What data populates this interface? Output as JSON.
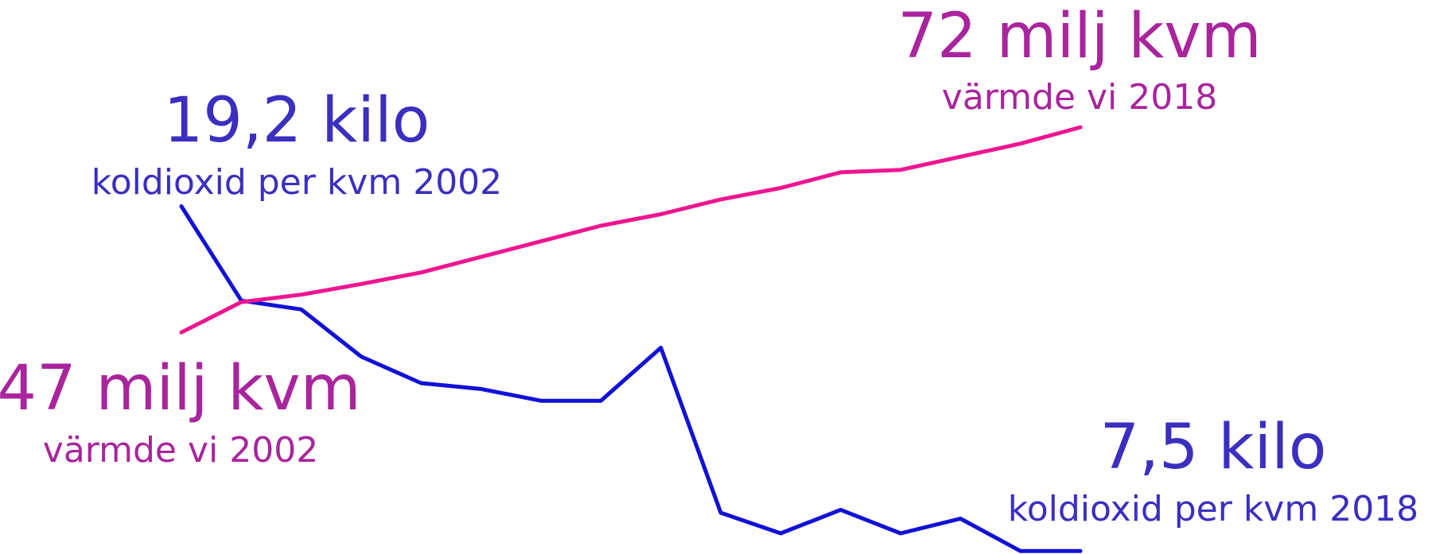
{
  "chart_data": {
    "type": "line",
    "annotations": [
      "19,2 kilo",
      "koldioxid per kvm 2002",
      "72 milj kvm",
      "värmde vi 2018",
      "47 milj kvm",
      "värmde vi 2002",
      "7,5 kilo",
      "koldioxid per kvm 2018"
    ],
    "series": [
      {
        "name": "koldioxid per kvm",
        "color": "#1111d6",
        "values": [
          19.2,
          16.0,
          15.7,
          14.1,
          13.2,
          13.0,
          12.6,
          12.6,
          14.4,
          8.8,
          8.1,
          8.9,
          8.1,
          8.6,
          7.5,
          7.5
        ]
      },
      {
        "name": "milj kvm",
        "color": "#ee1590",
        "axis": "y2",
        "values": [
          47,
          50.7,
          51.6,
          52.9,
          54.3,
          56.2,
          58.1,
          60.0,
          61.4,
          63.2,
          64.6,
          66.5,
          66.8,
          68.4,
          70.0,
          72
        ]
      }
    ],
    "ylim": [
      7.4,
      26.2
    ],
    "y2lim": [
      20,
      87.5
    ]
  }
}
